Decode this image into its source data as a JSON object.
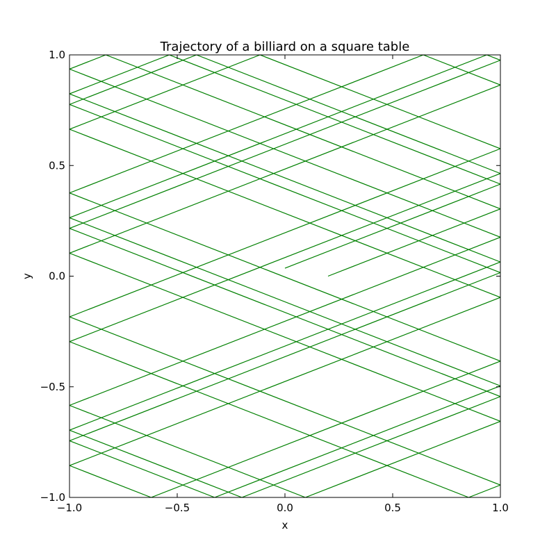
{
  "chart_data": {
    "type": "line",
    "title": "Trajectory of a billiard on a square table",
    "xlabel": "x",
    "ylabel": "y",
    "xlim": [
      -1.0,
      1.0
    ],
    "ylim": [
      -1.0,
      1.0
    ],
    "x_ticks": [
      -1.0,
      -0.5,
      0.0,
      0.5,
      1.0
    ],
    "y_ticks": [
      -1.0,
      -0.5,
      0.0,
      0.5,
      1.0
    ],
    "x_tick_labels": [
      "−1.0",
      "−0.5",
      "0.0",
      "0.5",
      "1.0"
    ],
    "y_tick_labels": [
      "−1.0",
      "−0.5",
      "0.0",
      "0.5",
      "1.0"
    ],
    "grid": false,
    "line_color": "#008000",
    "series": [
      {
        "start": [
          0.2,
          0.0
        ],
        "direction": [
          1.0,
          0.38
        ],
        "end_x": 0.0,
        "bounces": 40
      }
    ]
  }
}
